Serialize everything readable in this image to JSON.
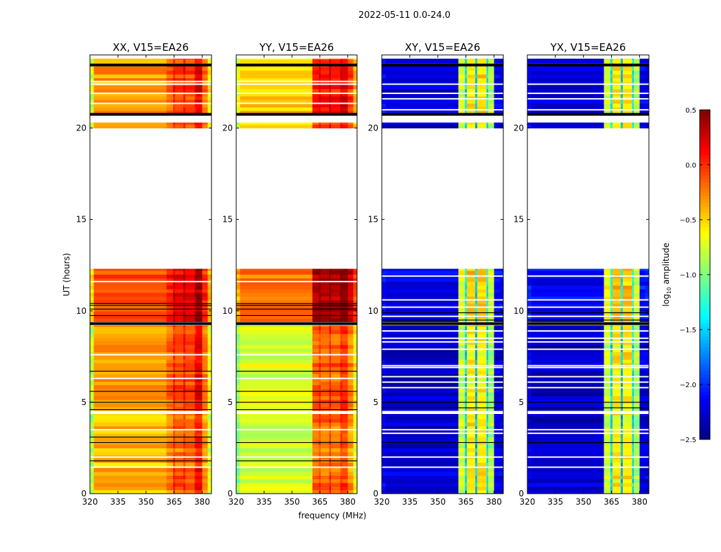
{
  "chart_data": {
    "type": "heatmap",
    "title": "2022-05-11 0.0-24.0",
    "xlabel": "frequency (MHz)",
    "ylabel": "UT (hours)",
    "xlim": [
      320,
      385
    ],
    "ylim": [
      0,
      24
    ],
    "xticks": [
      320,
      335,
      350,
      365,
      380
    ],
    "yticks": [
      0,
      5,
      10,
      15,
      20
    ],
    "colorbar": {
      "label_main": "log",
      "label_sub": "10",
      "label_rest": " amplitude",
      "colormap": "jet",
      "range": [
        -2.5,
        0.5
      ],
      "ticks": [
        0.5,
        0.0,
        -0.5,
        -1.0,
        -1.5,
        -2.0,
        -2.5
      ],
      "tick_labels": [
        "0.5",
        "0.0",
        "−0.5",
        "−1.0",
        "−1.5",
        "−2.0",
        "−2.5"
      ]
    },
    "freq_bands": [
      [
        320,
        322
      ],
      [
        322,
        361
      ],
      [
        361,
        364.5
      ],
      [
        364.5,
        365.5
      ],
      [
        365.5,
        370
      ],
      [
        370,
        371
      ],
      [
        371,
        376
      ],
      [
        376,
        377
      ],
      [
        377,
        380
      ],
      [
        380,
        383
      ],
      [
        383,
        385
      ]
    ],
    "time_blocks": [
      [
        0,
        1.4
      ],
      [
        1.5,
        4.35
      ],
      [
        4.55,
        9.2
      ],
      [
        9.4,
        12.3
      ],
      [
        20,
        20.3
      ],
      [
        20.75,
        23.45
      ],
      [
        23.55,
        23.8
      ]
    ],
    "panels": [
      {
        "title": "XX, V15=EA26",
        "block_base": [
          -0.4,
          -0.45,
          -0.35,
          -0.1,
          -0.35,
          -0.3,
          -0.35
        ],
        "band_offset": [
          -0.45,
          0,
          0.15,
          0.35,
          0.25,
          0.4,
          0.25,
          0.45,
          0.5,
          0.1,
          -0.3
        ],
        "flag_lines": [
          23.45,
          20.75,
          9.3,
          9.75,
          10.1,
          10.3,
          10.4,
          6.7,
          5.6,
          5.0,
          4.6,
          3.1,
          2.8,
          1.8
        ],
        "white_lines": [
          21.35,
          21.9,
          22.4,
          22.55,
          11.6,
          7.6,
          6.3,
          3.5,
          2.0
        ]
      },
      {
        "title": "YY, V15=EA26",
        "block_base": [
          -0.75,
          -0.78,
          -0.72,
          -0.2,
          -0.6,
          -0.5,
          -0.6
        ],
        "band_offset": [
          -0.2,
          0,
          0.55,
          0.7,
          0.55,
          0.75,
          0.55,
          0.75,
          0.7,
          0.45,
          0.1
        ],
        "flag_lines": [
          23.45,
          20.75,
          9.3,
          9.75,
          10.1,
          10.3,
          10.4,
          6.7,
          5.6,
          5.0,
          4.6,
          2.8,
          1.8
        ],
        "white_lines": [
          21.35,
          21.9,
          22.4,
          22.55,
          11.6,
          7.6,
          6.3,
          3.5,
          2.0
        ]
      },
      {
        "title": "XY, V15=EA26",
        "block_base": [
          -2.25,
          -2.3,
          -2.3,
          -2.15,
          -2.3,
          -2.25,
          -2.2
        ],
        "band_offset": [
          0.1,
          0,
          1.5,
          0.8,
          1.7,
          0.7,
          1.7,
          0.8,
          1.4,
          0.05,
          0.05
        ],
        "flag_lines": [
          23.45,
          20.75,
          9.3,
          9.5,
          9.9,
          5.0,
          4.7,
          2.8
        ],
        "white_lines": [
          22.4,
          21.9,
          21.6,
          21.0,
          11.9,
          10.6,
          10.2,
          9.7,
          8.9,
          8.5,
          8.3,
          7.9,
          7.0,
          6.9,
          6.4,
          6.1,
          5.8,
          3.5,
          3.3,
          2.0
        ]
      },
      {
        "title": "YX, V15=EA26",
        "block_base": [
          -2.25,
          -2.3,
          -2.3,
          -2.15,
          -2.3,
          -2.25,
          -2.2
        ],
        "band_offset": [
          0.1,
          0,
          1.5,
          0.8,
          1.7,
          0.7,
          1.7,
          0.8,
          1.4,
          0.05,
          0.05
        ],
        "flag_lines": [
          23.45,
          20.75,
          9.3,
          9.5,
          9.9,
          5.0,
          4.7,
          2.8
        ],
        "white_lines": [
          22.4,
          21.9,
          21.6,
          21.0,
          11.9,
          10.6,
          10.2,
          9.7,
          8.9,
          8.5,
          8.3,
          7.9,
          7.0,
          6.9,
          6.4,
          6.1,
          5.8,
          3.5,
          3.3,
          2.0
        ]
      }
    ]
  }
}
